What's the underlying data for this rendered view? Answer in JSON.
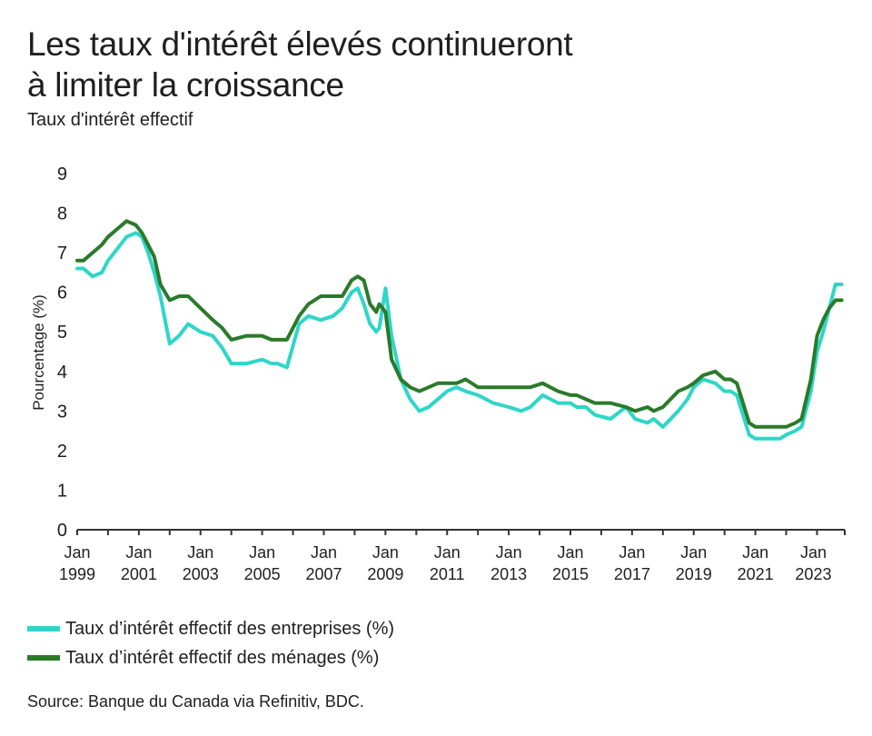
{
  "title_line1": "Les taux d'intérêt élevés continueront",
  "title_line2": "à limiter la croissance",
  "subtitle": "Taux d'intérêt effectif",
  "source": "Source: Banque du Canada via Refinitiv, BDC.",
  "colors": {
    "entreprises": "#2ed6c8",
    "menages": "#2a7a2a",
    "axis": "#333333"
  },
  "chart_data": {
    "type": "line",
    "ylabel": "Pourcentage (%)",
    "ylim": [
      0,
      9
    ],
    "yticks": [
      "0",
      "1",
      "2",
      "3",
      "4",
      "5",
      "6",
      "7",
      "8",
      "9"
    ],
    "xlim": [
      1999.0,
      2023.9
    ],
    "xticks": [
      {
        "year": 1999,
        "line1": "Jan",
        "line2": "1999"
      },
      {
        "year": 2001,
        "line1": "Jan",
        "line2": "2001"
      },
      {
        "year": 2003,
        "line1": "Jan",
        "line2": "2003"
      },
      {
        "year": 2005,
        "line1": "Jan",
        "line2": "2005"
      },
      {
        "year": 2007,
        "line1": "Jan",
        "line2": "2007"
      },
      {
        "year": 2009,
        "line1": "Jan",
        "line2": "2009"
      },
      {
        "year": 2011,
        "line1": "Jan",
        "line2": "2011"
      },
      {
        "year": 2013,
        "line1": "Jan",
        "line2": "2013"
      },
      {
        "year": 2015,
        "line1": "Jan",
        "line2": "2015"
      },
      {
        "year": 2017,
        "line1": "Jan",
        "line2": "2017"
      },
      {
        "year": 2019,
        "line1": "Jan",
        "line2": "2019"
      },
      {
        "year": 2021,
        "line1": "Jan",
        "line2": "2021"
      },
      {
        "year": 2023,
        "line1": "Jan",
        "line2": "2023"
      }
    ],
    "legend_position": "bottom-left",
    "series": [
      {
        "name": "Taux d’intérêt effectif des entreprises (%)",
        "color": "#2ed6c8",
        "x": [
          1999.0,
          1999.2,
          1999.5,
          1999.8,
          2000.0,
          2000.3,
          2000.6,
          2000.9,
          2001.1,
          2001.3,
          2001.5,
          2001.7,
          2002.0,
          2002.3,
          2002.6,
          2003.0,
          2003.4,
          2003.7,
          2004.0,
          2004.5,
          2005.0,
          2005.3,
          2005.5,
          2005.8,
          2006.2,
          2006.5,
          2006.9,
          2007.3,
          2007.6,
          2007.9,
          2008.1,
          2008.3,
          2008.5,
          2008.7,
          2008.8,
          2009.0,
          2009.2,
          2009.5,
          2009.8,
          2010.1,
          2010.4,
          2010.7,
          2011.0,
          2011.3,
          2011.6,
          2012.0,
          2012.5,
          2013.0,
          2013.4,
          2013.7,
          2014.1,
          2014.6,
          2015.0,
          2015.2,
          2015.5,
          2015.8,
          2016.3,
          2016.8,
          2017.1,
          2017.5,
          2017.7,
          2018.0,
          2018.5,
          2018.8,
          2019.0,
          2019.3,
          2019.7,
          2020.0,
          2020.2,
          2020.4,
          2020.6,
          2020.8,
          2021.0,
          2021.4,
          2021.8,
          2022.0,
          2022.3,
          2022.5,
          2022.8,
          2023.0,
          2023.2,
          2023.4,
          2023.6,
          2023.8
        ],
        "y": [
          6.6,
          6.6,
          6.4,
          6.5,
          6.8,
          7.1,
          7.4,
          7.5,
          7.4,
          7.0,
          6.5,
          5.9,
          4.7,
          4.9,
          5.2,
          5.0,
          4.9,
          4.6,
          4.2,
          4.2,
          4.3,
          4.2,
          4.2,
          4.1,
          5.2,
          5.4,
          5.3,
          5.4,
          5.6,
          6.0,
          6.1,
          5.7,
          5.2,
          5.0,
          5.1,
          6.1,
          4.9,
          3.8,
          3.3,
          3.0,
          3.1,
          3.3,
          3.5,
          3.6,
          3.5,
          3.4,
          3.2,
          3.1,
          3.0,
          3.1,
          3.4,
          3.2,
          3.2,
          3.1,
          3.1,
          2.9,
          2.8,
          3.1,
          2.8,
          2.7,
          2.8,
          2.6,
          3.0,
          3.3,
          3.6,
          3.8,
          3.7,
          3.5,
          3.5,
          3.4,
          2.9,
          2.4,
          2.3,
          2.3,
          2.3,
          2.4,
          2.5,
          2.6,
          3.5,
          4.5,
          5.0,
          5.6,
          6.2,
          6.2
        ]
      },
      {
        "name": "Taux d’intérêt effectif des ménages (%)",
        "color": "#2a7a2a",
        "x": [
          1999.0,
          1999.2,
          1999.5,
          1999.8,
          2000.0,
          2000.3,
          2000.6,
          2000.9,
          2001.1,
          2001.3,
          2001.5,
          2001.7,
          2002.0,
          2002.3,
          2002.6,
          2003.0,
          2003.4,
          2003.7,
          2004.0,
          2004.5,
          2005.0,
          2005.3,
          2005.5,
          2005.8,
          2006.2,
          2006.5,
          2006.9,
          2007.3,
          2007.6,
          2007.9,
          2008.1,
          2008.3,
          2008.5,
          2008.7,
          2008.8,
          2009.0,
          2009.2,
          2009.5,
          2009.8,
          2010.1,
          2010.4,
          2010.7,
          2011.0,
          2011.3,
          2011.6,
          2012.0,
          2012.5,
          2013.0,
          2013.4,
          2013.7,
          2014.1,
          2014.6,
          2015.0,
          2015.2,
          2015.5,
          2015.8,
          2016.3,
          2016.8,
          2017.1,
          2017.5,
          2017.7,
          2018.0,
          2018.5,
          2018.8,
          2019.0,
          2019.3,
          2019.7,
          2020.0,
          2020.2,
          2020.4,
          2020.6,
          2020.8,
          2021.0,
          2021.4,
          2021.8,
          2022.0,
          2022.3,
          2022.5,
          2022.8,
          2023.0,
          2023.2,
          2023.4,
          2023.6,
          2023.8
        ],
        "y": [
          6.8,
          6.8,
          7.0,
          7.2,
          7.4,
          7.6,
          7.8,
          7.7,
          7.5,
          7.2,
          6.9,
          6.2,
          5.8,
          5.9,
          5.9,
          5.6,
          5.3,
          5.1,
          4.8,
          4.9,
          4.9,
          4.8,
          4.8,
          4.8,
          5.4,
          5.7,
          5.9,
          5.9,
          5.9,
          6.3,
          6.4,
          6.3,
          5.7,
          5.5,
          5.7,
          5.5,
          4.3,
          3.8,
          3.6,
          3.5,
          3.6,
          3.7,
          3.7,
          3.7,
          3.8,
          3.6,
          3.6,
          3.6,
          3.6,
          3.6,
          3.7,
          3.5,
          3.4,
          3.4,
          3.3,
          3.2,
          3.2,
          3.1,
          3.0,
          3.1,
          3.0,
          3.1,
          3.5,
          3.6,
          3.7,
          3.9,
          4.0,
          3.8,
          3.8,
          3.7,
          3.2,
          2.7,
          2.6,
          2.6,
          2.6,
          2.6,
          2.7,
          2.8,
          3.8,
          4.9,
          5.3,
          5.6,
          5.8,
          5.8
        ]
      }
    ]
  }
}
